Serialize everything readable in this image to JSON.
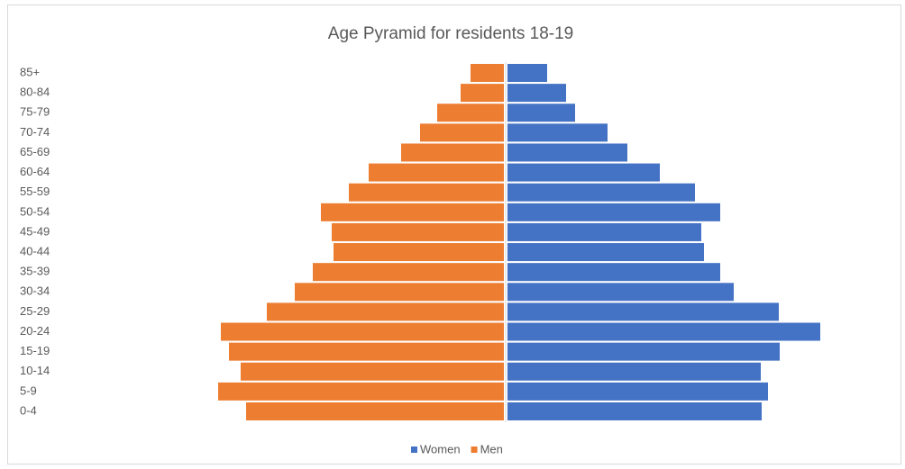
{
  "chart_data": {
    "type": "pyramid",
    "title": "Age Pyramid for residents 18-19",
    "categories": [
      "0-4",
      "5-9",
      "10-14",
      "15-19",
      "20-24",
      "25-29",
      "30-34",
      "35-39",
      "40-44",
      "45-49",
      "50-54",
      "55-59",
      "60-64",
      "65-69",
      "70-74",
      "75-79",
      "80-84",
      "85+"
    ],
    "series": [
      {
        "name": "Women",
        "color": "#4472c4",
        "values": [
          282,
          289,
          281,
          302,
          347,
          301,
          251,
          236,
          218,
          215,
          236,
          208,
          169,
          133,
          111,
          75,
          65,
          44
        ]
      },
      {
        "name": "Men",
        "color": "#ed7d31",
        "values": [
          286,
          317,
          292,
          305,
          314,
          263,
          232,
          212,
          189,
          191,
          203,
          172,
          150,
          114,
          93,
          74,
          48,
          37
        ]
      }
    ],
    "legend": "bottom"
  }
}
